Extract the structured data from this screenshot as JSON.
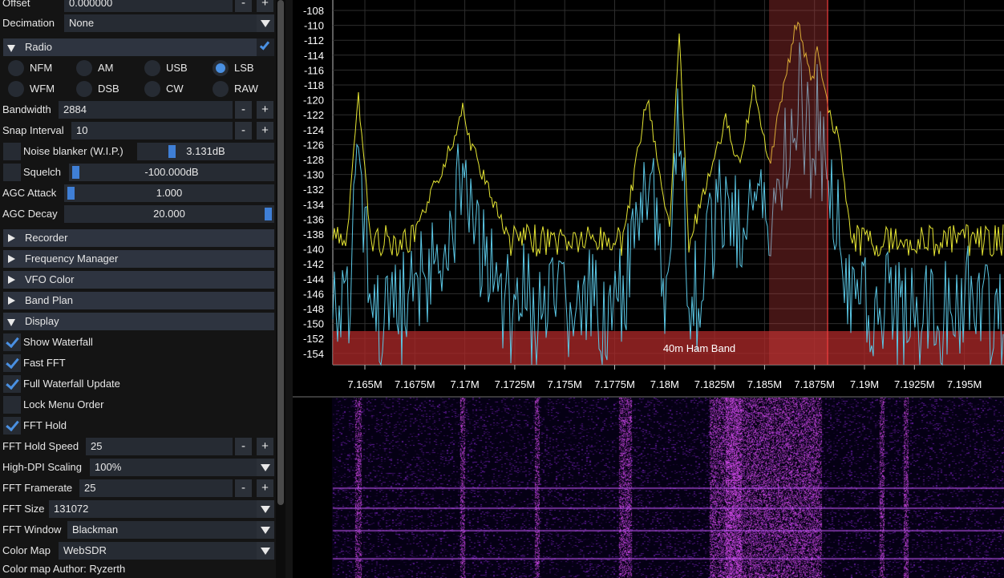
{
  "menu": {
    "offset": {
      "label": "Offset",
      "value": "0.000000"
    },
    "decimation": {
      "label": "Decimation",
      "value": "None"
    },
    "radio": {
      "header": "Radio",
      "modes": [
        {
          "label": "NFM",
          "selected": false
        },
        {
          "label": "AM",
          "selected": false
        },
        {
          "label": "USB",
          "selected": false
        },
        {
          "label": "LSB",
          "selected": true
        },
        {
          "label": "WFM",
          "selected": false
        },
        {
          "label": "DSB",
          "selected": false
        },
        {
          "label": "CW",
          "selected": false
        },
        {
          "label": "RAW",
          "selected": false
        }
      ],
      "bandwidth": {
        "label": "Bandwidth",
        "value": "2884"
      },
      "snap_interval": {
        "label": "Snap Interval",
        "value": "10"
      },
      "noise_blanker": {
        "label": "Noise blanker (W.I.P.)",
        "value": "3.131dB",
        "level": 0.3
      },
      "squelch": {
        "label": "Squelch",
        "value": "-100.000dB",
        "level": 0.0
      },
      "agc_attack": {
        "label": "AGC Attack",
        "value": "1.000",
        "level": 0.0
      },
      "agc_decay": {
        "label": "AGC Decay",
        "value": "20.000",
        "level": 1.0
      }
    },
    "collapsed_sections": [
      "Recorder",
      "Frequency Manager",
      "VFO Color",
      "Band Plan"
    ],
    "display": {
      "header": "Display",
      "checks": [
        {
          "label": "Show Waterfall",
          "checked": true
        },
        {
          "label": "Fast FFT",
          "checked": true
        },
        {
          "label": "Full Waterfall Update",
          "checked": true
        },
        {
          "label": "Lock Menu Order",
          "checked": false
        },
        {
          "label": "FFT Hold",
          "checked": true
        }
      ],
      "fft_hold_speed": {
        "label": "FFT Hold Speed",
        "value": "25"
      },
      "high_dpi": {
        "label": "High-DPI Scaling",
        "value": "100%"
      },
      "fft_framerate": {
        "label": "FFT Framerate",
        "value": "25"
      },
      "fft_size": {
        "label": "FFT Size",
        "value": "131072"
      },
      "fft_window": {
        "label": "FFT Window",
        "value": "Blackman"
      },
      "color_map": {
        "label": "Color Map",
        "value": "WebSDR"
      },
      "color_map_author": "Color map Author: Ryzerth"
    },
    "minus": "-",
    "plus": "+"
  },
  "spectrum": {
    "y_ticks": [
      "-108",
      "-110",
      "-112",
      "-114",
      "-116",
      "-118",
      "-120",
      "-122",
      "-124",
      "-126",
      "-128",
      "-130",
      "-132",
      "-134",
      "-136",
      "-138",
      "-140",
      "-142",
      "-144",
      "-146",
      "-148",
      "-150",
      "-152",
      "-154"
    ],
    "x_ticks": [
      "7.165M",
      "7.1675M",
      "7.17M",
      "7.1725M",
      "7.175M",
      "7.1775M",
      "7.18M",
      "7.1825M",
      "7.185M",
      "7.1875M",
      "7.19M",
      "7.1925M",
      "7.195M"
    ],
    "band_label": "40m Ham Band",
    "colors": {
      "hold": "#e6e633",
      "live": "#5bc8e6",
      "band": "#b02a2a",
      "vfo": "#c23c3c"
    }
  }
}
